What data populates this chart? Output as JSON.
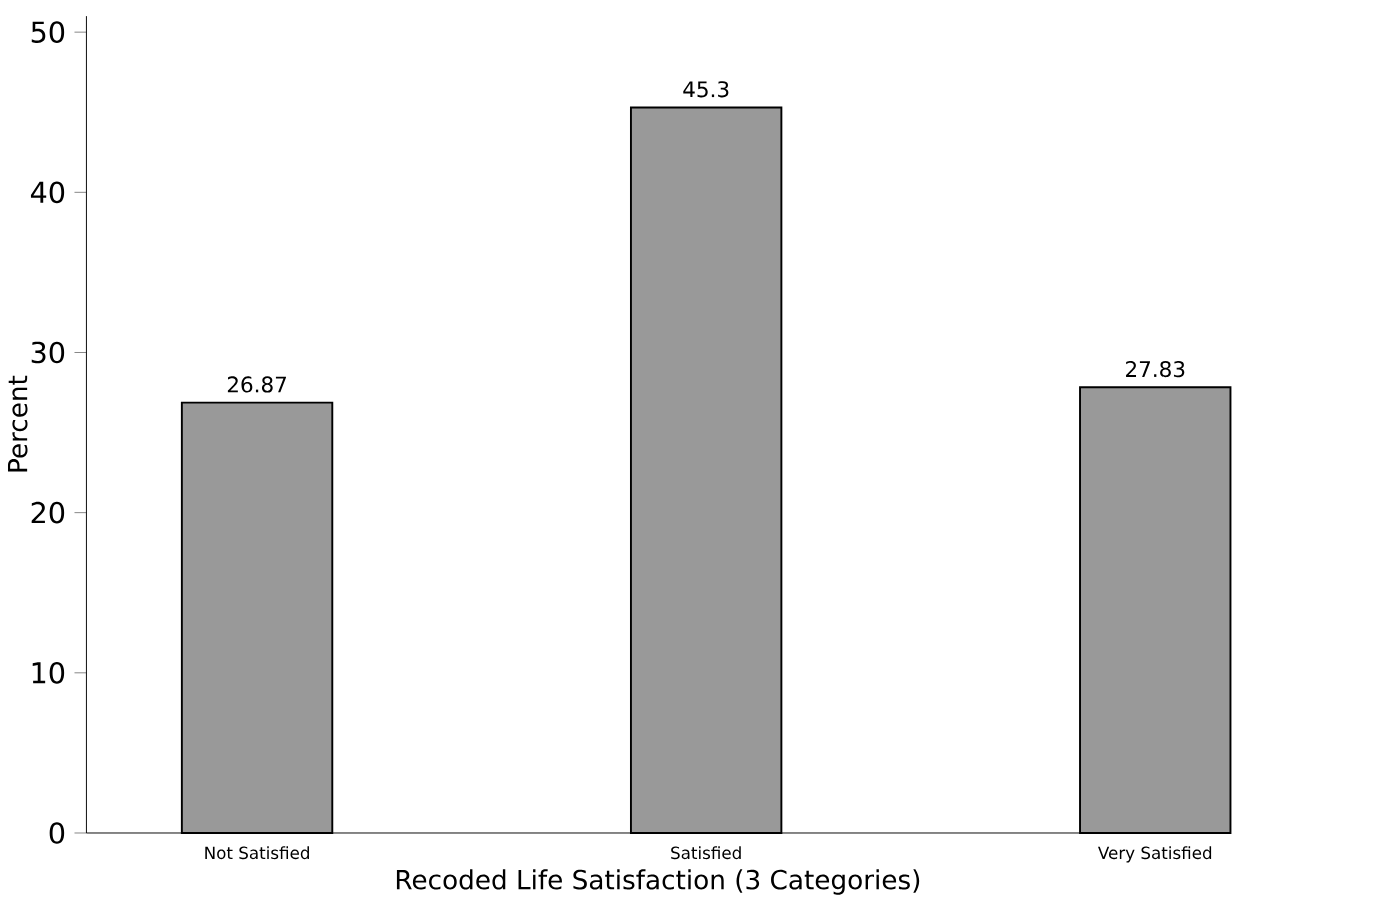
{
  "chart_data": {
    "type": "bar",
    "xlabel": "Recoded Life Satisfaction (3 Categories)",
    "ylabel": "Percent",
    "categories": [
      "Not Satisfied",
      "Satisfied",
      "Very Satisfied"
    ],
    "values": [
      26.87,
      45.3,
      27.83
    ],
    "color": "#999999",
    "data_labels": true,
    "ylim": [
      0,
      51
    ],
    "yticks": [
      0,
      10,
      20,
      30,
      40,
      50
    ],
    "grid": false
  }
}
